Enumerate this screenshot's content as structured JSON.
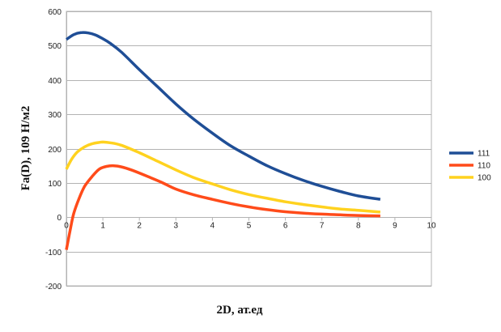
{
  "chart_data": {
    "type": "line",
    "title": "",
    "xlabel": "2D,   ат.ед",
    "ylabel": "Fa(D), 109 Н/м2",
    "xlim": [
      0,
      10
    ],
    "ylim": [
      -200,
      600
    ],
    "xticks": [
      0,
      1,
      2,
      3,
      4,
      5,
      6,
      7,
      8,
      9,
      10
    ],
    "yticks": [
      -200,
      -100,
      0,
      100,
      200,
      300,
      400,
      500,
      600
    ],
    "grid": "horizontal",
    "legend_position": "right",
    "series": [
      {
        "name": "111",
        "color": "#1f4e96",
        "x": [
          0,
          0.2,
          0.4,
          0.6,
          0.8,
          1.0,
          1.2,
          1.5,
          2.0,
          2.5,
          3.0,
          3.5,
          4.0,
          4.5,
          5.0,
          5.5,
          6.0,
          6.5,
          7.0,
          7.5,
          8.0,
          8.6
        ],
        "y": [
          518,
          532,
          538,
          537,
          531,
          520,
          507,
          482,
          430,
          380,
          330,
          285,
          245,
          208,
          178,
          150,
          127,
          107,
          90,
          75,
          62,
          52
        ]
      },
      {
        "name": "110",
        "color": "#ff4b1a",
        "x": [
          0,
          0.1,
          0.2,
          0.35,
          0.5,
          0.7,
          0.9,
          1.1,
          1.3,
          1.5,
          1.8,
          2.2,
          2.6,
          3.0,
          3.5,
          4.0,
          4.5,
          5.0,
          5.5,
          6.0,
          6.5,
          7.0,
          7.5,
          8.0,
          8.6
        ],
        "y": [
          -95,
          -40,
          10,
          55,
          90,
          118,
          140,
          148,
          150,
          147,
          137,
          120,
          102,
          82,
          65,
          52,
          40,
          30,
          22,
          16,
          12,
          9,
          7,
          5,
          4
        ]
      },
      {
        "name": "100",
        "color": "#ffd21f",
        "x": [
          0,
          0.15,
          0.3,
          0.5,
          0.7,
          0.9,
          1.0,
          1.2,
          1.5,
          2.0,
          2.5,
          3.0,
          3.5,
          4.0,
          4.5,
          5.0,
          5.5,
          6.0,
          6.5,
          7.0,
          7.5,
          8.0,
          8.6
        ],
        "y": [
          140,
          170,
          190,
          205,
          214,
          218,
          219,
          217,
          210,
          188,
          163,
          138,
          115,
          97,
          80,
          66,
          55,
          45,
          37,
          30,
          24,
          20,
          15
        ]
      }
    ]
  }
}
